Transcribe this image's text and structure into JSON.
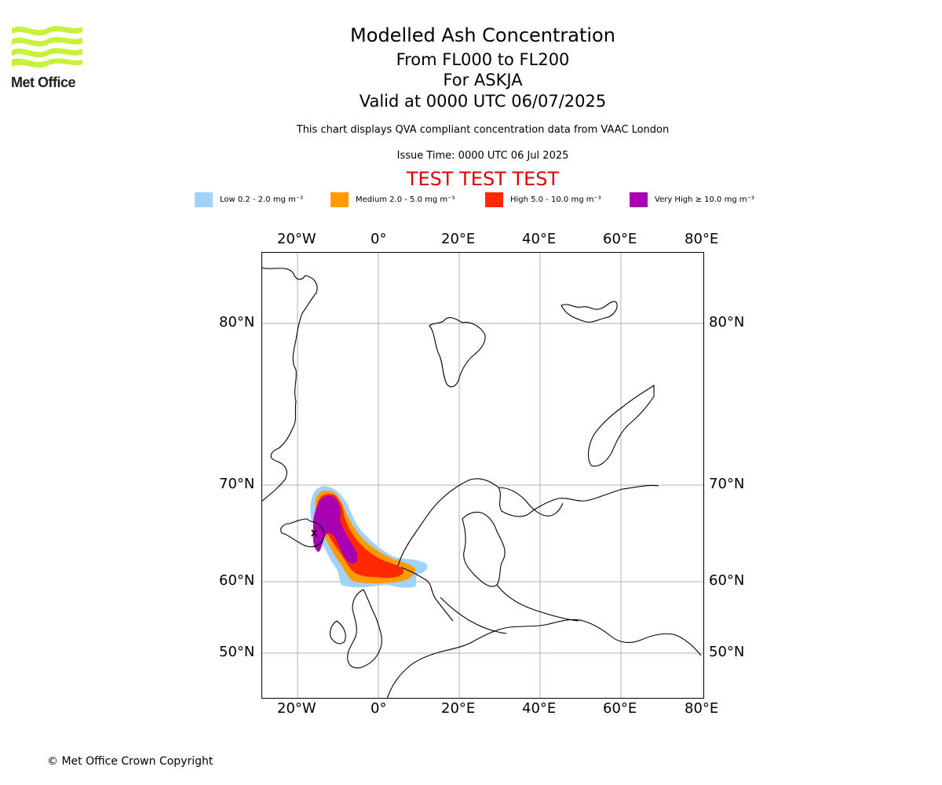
{
  "brand": {
    "name": "Met Office",
    "logo_color": "#c6f23a"
  },
  "header": {
    "title": "Modelled Ash Concentration",
    "flight_levels": "From FL000 to FL200",
    "volcano": "For ASKJA",
    "valid_time": "Valid at 0000 UTC 06/07/2025",
    "description": "This chart displays QVA compliant concentration data from VAAC London",
    "issue_time": "Issue Time: 0000 UTC 06 Jul 2025",
    "test_banner": "TEST TEST TEST",
    "test_banner_color": "#dd0000"
  },
  "legend": [
    {
      "label": "Low 0.2 - 2.0 mg m⁻³",
      "color": "#a0d2fa"
    },
    {
      "label": "Medium 2.0 - 5.0 mg m⁻³",
      "color": "#ff9a00"
    },
    {
      "label": "High 5.0 - 10.0 mg m⁻³",
      "color": "#ff2800"
    },
    {
      "label": "Very High ≥ 10.0 mg m⁻³",
      "color": "#aa00b4"
    }
  ],
  "axes": {
    "longitude_ticks": [
      "20°W",
      "0°",
      "20°E",
      "40°E",
      "60°E",
      "80°E"
    ],
    "latitude_ticks": [
      "80°N",
      "70°N",
      "60°N",
      "50°N"
    ],
    "grid": true
  },
  "map": {
    "region": "North Atlantic / Europe",
    "volcano_marker": "Askja",
    "plume_direction": "south-east from Iceland towards Faroes/Shetland"
  },
  "footer": {
    "copyright": "© Met Office Crown Copyright"
  }
}
